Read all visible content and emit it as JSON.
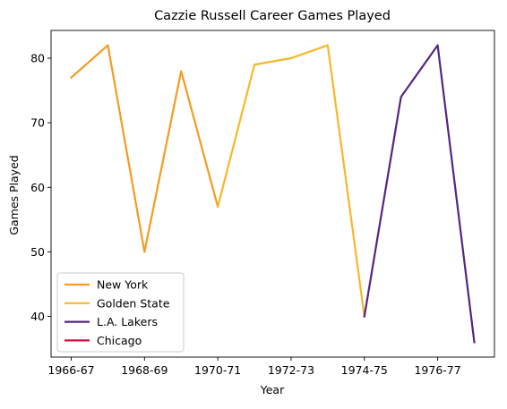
{
  "chart_data": {
    "type": "line",
    "title": "Cazzie Russell Career Games Played",
    "xlabel": "Year",
    "ylabel": "Games Played",
    "x_tick_labels": [
      "1966-67",
      "1968-69",
      "1970-71",
      "1972-73",
      "1974-75",
      "1976-77"
    ],
    "x_tick_indices": [
      0,
      2,
      4,
      6,
      8,
      10
    ],
    "y_ticks": [
      40,
      50,
      60,
      70,
      80
    ],
    "xlim": [
      -0.55,
      11.55
    ],
    "ylim": [
      33.7,
      84.3
    ],
    "grid": false,
    "legend_position": "lower-left",
    "series": [
      {
        "name": "New York",
        "color": "#f39c20",
        "x": [
          0,
          1,
          2,
          3,
          4
        ],
        "values": [
          77,
          82,
          50,
          78,
          57
        ]
      },
      {
        "name": "Golden State",
        "color": "#f6b828",
        "x": [
          4,
          5,
          6,
          7,
          8
        ],
        "values": [
          57,
          79,
          80,
          82,
          40
        ]
      },
      {
        "name": "L.A. Lakers",
        "color": "#552583",
        "x": [
          8,
          9,
          10,
          11
        ],
        "values": [
          40,
          74,
          82,
          36
        ]
      },
      {
        "name": "Chicago",
        "color": "#ce1141",
        "x": [],
        "values": []
      }
    ]
  }
}
